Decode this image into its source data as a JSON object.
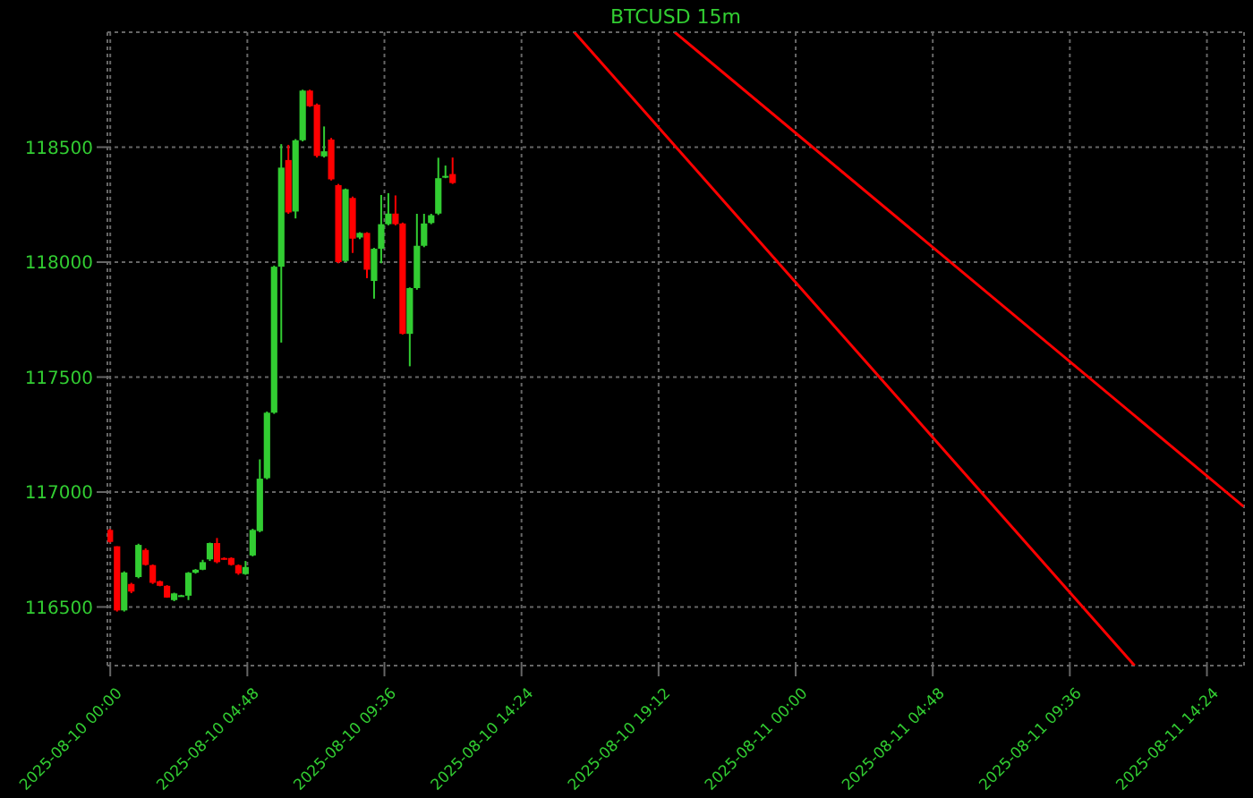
{
  "chart_data": {
    "type": "candlestick",
    "title": "BTCUSD 15m",
    "grid": true,
    "x": [
      "2025-08-10T00:00",
      "2025-08-10T00:15",
      "2025-08-10T00:30",
      "2025-08-10T00:45",
      "2025-08-10T01:00",
      "2025-08-10T01:15",
      "2025-08-10T01:30",
      "2025-08-10T01:45",
      "2025-08-10T02:00",
      "2025-08-10T02:15",
      "2025-08-10T02:30",
      "2025-08-10T02:45",
      "2025-08-10T03:00",
      "2025-08-10T03:15",
      "2025-08-10T03:30",
      "2025-08-10T03:45",
      "2025-08-10T04:00",
      "2025-08-10T04:15",
      "2025-08-10T04:30",
      "2025-08-10T04:45",
      "2025-08-10T05:00",
      "2025-08-10T05:15",
      "2025-08-10T05:30",
      "2025-08-10T05:45",
      "2025-08-10T06:00",
      "2025-08-10T06:15",
      "2025-08-10T06:30",
      "2025-08-10T06:45",
      "2025-08-10T07:00",
      "2025-08-10T07:15",
      "2025-08-10T07:30",
      "2025-08-10T07:45",
      "2025-08-10T08:00",
      "2025-08-10T08:15",
      "2025-08-10T08:30",
      "2025-08-10T08:45",
      "2025-08-10T09:00",
      "2025-08-10T09:15",
      "2025-08-10T09:30",
      "2025-08-10T09:45",
      "2025-08-10T10:00",
      "2025-08-10T10:15",
      "2025-08-10T10:30",
      "2025-08-10T10:45",
      "2025-08-10T11:00",
      "2025-08-10T11:15",
      "2025-08-10T11:30",
      "2025-08-10T11:45",
      "2025-08-10T12:00"
    ],
    "ohlc": [
      [
        116835,
        116840,
        116780,
        116783
      ],
      [
        116764,
        116764,
        116480,
        116485
      ],
      [
        116485,
        116655,
        116480,
        116650
      ],
      [
        116600,
        116605,
        116560,
        116567
      ],
      [
        116630,
        116775,
        116625,
        116770
      ],
      [
        116748,
        116755,
        116680,
        116683
      ],
      [
        116682,
        116685,
        116600,
        116605
      ],
      [
        116612,
        116615,
        116590,
        116592
      ],
      [
        116592,
        116595,
        116540,
        116541
      ],
      [
        116530,
        116562,
        116525,
        116559
      ],
      [
        116549,
        116553,
        116547,
        116551
      ],
      [
        116549,
        116652,
        116530,
        116649
      ],
      [
        116649,
        116665,
        116645,
        116662
      ],
      [
        116662,
        116705,
        116660,
        116695
      ],
      [
        116707,
        116780,
        116700,
        116778
      ],
      [
        116778,
        116800,
        116690,
        116695
      ],
      [
        116713,
        116716,
        116705,
        116710
      ],
      [
        116713,
        116716,
        116680,
        116683
      ],
      [
        116682,
        116685,
        116640,
        116646
      ],
      [
        116643,
        116700,
        116640,
        116674
      ],
      [
        116724,
        116840,
        116720,
        116835
      ],
      [
        116830,
        117142,
        116825,
        117058
      ],
      [
        117060,
        117350,
        117055,
        117345
      ],
      [
        117345,
        117985,
        117340,
        117980
      ],
      [
        117980,
        118513,
        117650,
        118411
      ],
      [
        118444,
        118510,
        118210,
        118216
      ],
      [
        118220,
        118535,
        118190,
        118530
      ],
      [
        118530,
        118750,
        118525,
        118746
      ],
      [
        118746,
        118750,
        118675,
        118678
      ],
      [
        118685,
        118690,
        118455,
        118462
      ],
      [
        118460,
        118590,
        118455,
        118482
      ],
      [
        118533,
        118540,
        118355,
        118360
      ],
      [
        118335,
        118340,
        117995,
        118000
      ],
      [
        118005,
        118320,
        118000,
        118317
      ],
      [
        118279,
        118285,
        118040,
        118102
      ],
      [
        118107,
        118130,
        118100,
        118127
      ],
      [
        118127,
        118130,
        117930,
        117967
      ],
      [
        117918,
        118062,
        117841,
        118058
      ],
      [
        118058,
        118292,
        117995,
        118165
      ],
      [
        118165,
        118300,
        118160,
        118211
      ],
      [
        118211,
        118290,
        118160,
        118165
      ],
      [
        118168,
        118172,
        117685,
        117688
      ],
      [
        117688,
        117890,
        117547,
        117887
      ],
      [
        117887,
        118210,
        117880,
        118071
      ],
      [
        118071,
        118210,
        118065,
        118168
      ],
      [
        118170,
        118210,
        118165,
        118204
      ],
      [
        118211,
        118454,
        118205,
        118365
      ],
      [
        118370,
        118420,
        118365,
        118375
      ],
      [
        118383,
        118455,
        118340,
        118344
      ]
    ],
    "colors": [
      "#ff0000",
      "#ff0000",
      "#32cd32",
      "#ff0000",
      "#32cd32",
      "#ff0000",
      "#ff0000",
      "#ff0000",
      "#ff0000",
      "#32cd32",
      "#32cd32",
      "#32cd32",
      "#32cd32",
      "#32cd32",
      "#32cd32",
      "#ff0000",
      "#ff0000",
      "#ff0000",
      "#ff0000",
      "#32cd32",
      "#32cd32",
      "#32cd32",
      "#32cd32",
      "#32cd32",
      "#32cd32",
      "#ff0000",
      "#32cd32",
      "#32cd32",
      "#ff0000",
      "#ff0000",
      "#32cd32",
      "#ff0000",
      "#ff0000",
      "#32cd32",
      "#ff0000",
      "#32cd32",
      "#ff0000",
      "#32cd32",
      "#32cd32",
      "#32cd32",
      "#ff0000",
      "#ff0000",
      "#32cd32",
      "#32cd32",
      "#32cd32",
      "#32cd32",
      "#32cd32",
      "#32cd32",
      "#ff0000"
    ],
    "series": [
      {
        "type": "line",
        "color": "#ff0000",
        "x": [
          "2025-08-10T16:15",
          "2025-08-11T11:52"
        ],
        "values": [
          119000,
          116245
        ]
      },
      {
        "type": "line",
        "color": "#ff0000",
        "x": [
          "2025-08-10T19:46",
          "2025-08-11T15:41"
        ],
        "values": [
          119000,
          116937
        ]
      }
    ],
    "xlim": [
      "2025-08-09T23:54",
      "2025-08-11T15:42"
    ],
    "xticks": [
      {
        "value": "2025-08-10T00:00",
        "label": "2025-08-10 00:00"
      },
      {
        "value": "2025-08-10T04:48",
        "label": "2025-08-10 04:48"
      },
      {
        "value": "2025-08-10T09:36",
        "label": "2025-08-10 09:36"
      },
      {
        "value": "2025-08-10T14:24",
        "label": "2025-08-10 14:24"
      },
      {
        "value": "2025-08-10T19:12",
        "label": "2025-08-10 19:12"
      },
      {
        "value": "2025-08-11T00:00",
        "label": "2025-08-11 00:00"
      },
      {
        "value": "2025-08-11T04:48",
        "label": "2025-08-11 04:48"
      },
      {
        "value": "2025-08-11T09:36",
        "label": "2025-08-11 09:36"
      },
      {
        "value": "2025-08-11T14:24",
        "label": "2025-08-11 14:24"
      }
    ],
    "ylim": [
      116245,
      119000
    ],
    "yticks": [
      116500,
      117000,
      117500,
      118000,
      118500
    ]
  }
}
